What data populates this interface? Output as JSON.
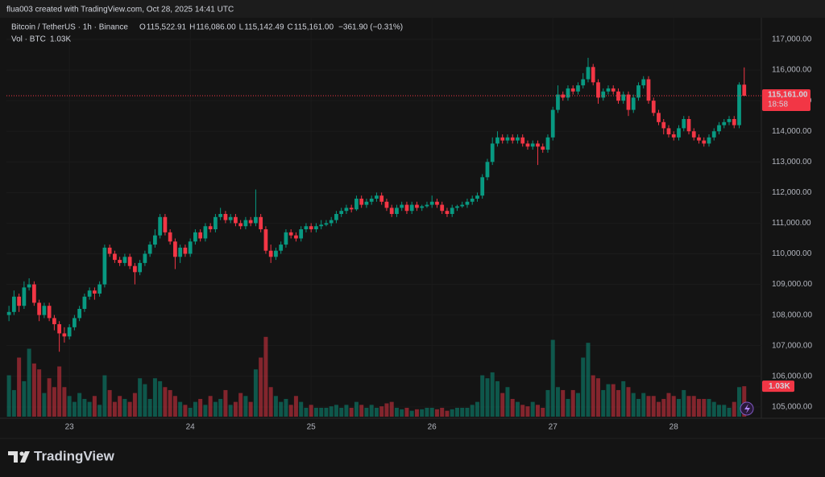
{
  "header": "flua003 created with TradingView.com, Oct 28, 2025 14:41 UTC",
  "footer": {
    "brand": "TradingView"
  },
  "chart_data": {
    "type": "candlestick",
    "symbol": "Bitcoin / TetherUS · 1h · Binance",
    "ohlc_legend": [
      {
        "key": "O",
        "value": "115,522.91"
      },
      {
        "key": "H",
        "value": "116,086.00"
      },
      {
        "key": "L",
        "value": "115,142.49"
      },
      {
        "key": "C",
        "value": "115,161.00"
      }
    ],
    "change": "−361.90 (−0.31%)",
    "volume_title": "Vol · BTC",
    "volume_legend": "1.03K",
    "up_color": "#089981",
    "down_color": "#f23645",
    "xlim": [
      -0.5,
      149.4
    ],
    "ylim": [
      104680,
      117710
    ],
    "volume_ylim": [
      0,
      13500
    ],
    "grid": true,
    "xticks": [
      {
        "value": 12,
        "label": "23"
      },
      {
        "value": 36,
        "label": "24"
      },
      {
        "value": 60,
        "label": "25"
      },
      {
        "value": 84,
        "label": "26"
      },
      {
        "value": 108,
        "label": "27"
      },
      {
        "value": 132,
        "label": "28"
      }
    ],
    "yticks": [
      {
        "value": 105000,
        "label": "105,000.00"
      },
      {
        "value": 106000,
        "label": "106,000.00"
      },
      {
        "value": 107000,
        "label": "107,000.00"
      },
      {
        "value": 108000,
        "label": "108,000.00"
      },
      {
        "value": 109000,
        "label": "109,000.00"
      },
      {
        "value": 110000,
        "label": "110,000.00"
      },
      {
        "value": 111000,
        "label": "111,000.00"
      },
      {
        "value": 112000,
        "label": "112,000.00"
      },
      {
        "value": 113000,
        "label": "113,000.00"
      },
      {
        "value": 114000,
        "label": "114,000.00"
      },
      {
        "value": 115000,
        "label": "115,000.00"
      },
      {
        "value": 116000,
        "label": "116,000.00"
      },
      {
        "value": 117000,
        "label": "117,000.00"
      }
    ],
    "last_price": {
      "value": 115161,
      "label": "115,161.00",
      "countdown": "18:58"
    },
    "volume_badge": {
      "value": 1030,
      "label": "1.03K"
    },
    "candles": [
      [
        108000,
        108300,
        107800,
        108100
      ],
      [
        108100,
        108800,
        108000,
        108600
      ],
      [
        108600,
        108700,
        108100,
        108300
      ],
      [
        108300,
        109100,
        108200,
        108900
      ],
      [
        108900,
        109200,
        108800,
        109000
      ],
      [
        109000,
        109100,
        108300,
        108400
      ],
      [
        108400,
        108500,
        107800,
        108000
      ],
      [
        108000,
        108400,
        107900,
        108300
      ],
      [
        108300,
        108400,
        107800,
        107900
      ],
      [
        107900,
        108000,
        107500,
        107700
      ],
      [
        107700,
        107800,
        106800,
        107400
      ],
      [
        107400,
        107600,
        107100,
        107300
      ],
      [
        107300,
        107700,
        107200,
        107600
      ],
      [
        107600,
        108000,
        107500,
        107900
      ],
      [
        107900,
        108300,
        107800,
        108200
      ],
      [
        108200,
        108700,
        108100,
        108600
      ],
      [
        108600,
        108900,
        108500,
        108800
      ],
      [
        108800,
        108900,
        108500,
        108700
      ],
      [
        108700,
        109100,
        108600,
        109000
      ],
      [
        109000,
        110300,
        108900,
        110200
      ],
      [
        110200,
        110300,
        109900,
        110000
      ],
      [
        110000,
        110100,
        109700,
        109800
      ],
      [
        109800,
        109900,
        109600,
        109700
      ],
      [
        109700,
        110000,
        109600,
        109900
      ],
      [
        109900,
        110000,
        109500,
        109600
      ],
      [
        109600,
        109700,
        109000,
        109400
      ],
      [
        109400,
        109800,
        109300,
        109700
      ],
      [
        109700,
        110100,
        109600,
        110000
      ],
      [
        110000,
        110400,
        109900,
        110300
      ],
      [
        110300,
        110800,
        110200,
        110600
      ],
      [
        110600,
        111300,
        110500,
        111200
      ],
      [
        111200,
        111300,
        110600,
        110700
      ],
      [
        110700,
        110800,
        110300,
        110400
      ],
      [
        110400,
        110500,
        109500,
        109900
      ],
      [
        109900,
        110300,
        109700,
        110200
      ],
      [
        110200,
        110300,
        109900,
        110000
      ],
      [
        110000,
        110500,
        109900,
        110400
      ],
      [
        110400,
        110800,
        110300,
        110700
      ],
      [
        110700,
        110800,
        110400,
        110500
      ],
      [
        110500,
        111000,
        110400,
        110900
      ],
      [
        110900,
        111000,
        110700,
        110800
      ],
      [
        110800,
        111300,
        110700,
        111200
      ],
      [
        111200,
        111500,
        111100,
        111300
      ],
      [
        111300,
        111400,
        111000,
        111100
      ],
      [
        111100,
        111300,
        111000,
        111200
      ],
      [
        111200,
        111300,
        110900,
        111000
      ],
      [
        111000,
        111100,
        110800,
        110900
      ],
      [
        110900,
        111200,
        110800,
        111100
      ],
      [
        111100,
        111200,
        110900,
        111000
      ],
      [
        111000,
        112100,
        110900,
        111200
      ],
      [
        111200,
        111300,
        110700,
        110800
      ],
      [
        110800,
        110900,
        110000,
        110100
      ],
      [
        110100,
        110300,
        109700,
        109900
      ],
      [
        109900,
        110200,
        109800,
        110100
      ],
      [
        110100,
        110400,
        110000,
        110300
      ],
      [
        110300,
        110800,
        110200,
        110700
      ],
      [
        110700,
        110800,
        110500,
        110600
      ],
      [
        110600,
        110700,
        110400,
        110500
      ],
      [
        110500,
        110900,
        110400,
        110800
      ],
      [
        110800,
        111000,
        110700,
        110900
      ],
      [
        110900,
        111000,
        110700,
        110800
      ],
      [
        110800,
        111000,
        110700,
        110900
      ],
      [
        110900,
        111100,
        110800,
        110950
      ],
      [
        110950,
        111100,
        110900,
        111000
      ],
      [
        111000,
        111200,
        110900,
        111100
      ],
      [
        111100,
        111400,
        111000,
        111300
      ],
      [
        111300,
        111500,
        111200,
        111400
      ],
      [
        111400,
        111600,
        111300,
        111500
      ],
      [
        111500,
        111600,
        111350,
        111450
      ],
      [
        111450,
        111900,
        111400,
        111800
      ],
      [
        111800,
        111900,
        111500,
        111600
      ],
      [
        111600,
        111800,
        111500,
        111700
      ],
      [
        111700,
        111900,
        111600,
        111800
      ],
      [
        111800,
        112000,
        111700,
        111900
      ],
      [
        111900,
        112000,
        111600,
        111700
      ],
      [
        111700,
        111800,
        111400,
        111500
      ],
      [
        111500,
        111600,
        111200,
        111300
      ],
      [
        111300,
        111600,
        111200,
        111500
      ],
      [
        111500,
        111700,
        111400,
        111600
      ],
      [
        111600,
        111700,
        111300,
        111400
      ],
      [
        111400,
        111700,
        111300,
        111600
      ],
      [
        111600,
        111700,
        111400,
        111500
      ],
      [
        111500,
        111600,
        111400,
        111550
      ],
      [
        111550,
        111700,
        111500,
        111600
      ],
      [
        111600,
        111900,
        111500,
        111700
      ],
      [
        111700,
        111800,
        111500,
        111600
      ],
      [
        111600,
        111700,
        111300,
        111400
      ],
      [
        111400,
        111500,
        111200,
        111300
      ],
      [
        111300,
        111600,
        111200,
        111500
      ],
      [
        111500,
        111600,
        111400,
        111550
      ],
      [
        111550,
        111700,
        111500,
        111600
      ],
      [
        111600,
        111800,
        111500,
        111700
      ],
      [
        111700,
        111900,
        111600,
        111800
      ],
      [
        111800,
        112000,
        111700,
        111900
      ],
      [
        111900,
        112600,
        111800,
        112500
      ],
      [
        112500,
        113100,
        112400,
        113000
      ],
      [
        113000,
        113800,
        112900,
        113600
      ],
      [
        113600,
        114000,
        113500,
        113800
      ],
      [
        113800,
        113900,
        113600,
        113700
      ],
      [
        113700,
        113900,
        113600,
        113800
      ],
      [
        113800,
        113900,
        113600,
        113700
      ],
      [
        113700,
        113900,
        113600,
        113800
      ],
      [
        113800,
        113900,
        113500,
        113600
      ],
      [
        113600,
        113700,
        113400,
        113500
      ],
      [
        113500,
        113700,
        113400,
        113600
      ],
      [
        113600,
        113700,
        112900,
        113500
      ],
      [
        113500,
        113600,
        113300,
        113400
      ],
      [
        113400,
        113900,
        113300,
        113800
      ],
      [
        113800,
        114800,
        113700,
        114700
      ],
      [
        114700,
        115500,
        114600,
        115200
      ],
      [
        115200,
        115300,
        115000,
        115100
      ],
      [
        115100,
        115500,
        115000,
        115400
      ],
      [
        115400,
        115500,
        115200,
        115300
      ],
      [
        115300,
        115600,
        115200,
        115500
      ],
      [
        115500,
        115900,
        115400,
        115700
      ],
      [
        115700,
        116400,
        115600,
        116100
      ],
      [
        116100,
        116200,
        115500,
        115600
      ],
      [
        115600,
        115700,
        114900,
        115100
      ],
      [
        115100,
        115400,
        115000,
        115300
      ],
      [
        115300,
        115500,
        115200,
        115400
      ],
      [
        115400,
        115500,
        115200,
        115300
      ],
      [
        115300,
        115400,
        114900,
        115000
      ],
      [
        115000,
        115300,
        114900,
        115200
      ],
      [
        115200,
        115300,
        114500,
        114700
      ],
      [
        114700,
        115200,
        114600,
        115100
      ],
      [
        115100,
        115600,
        115000,
        115500
      ],
      [
        115500,
        115800,
        115400,
        115700
      ],
      [
        115700,
        115800,
        114900,
        115000
      ],
      [
        115000,
        115100,
        114500,
        114600
      ],
      [
        114600,
        114700,
        114200,
        114300
      ],
      [
        114300,
        114400,
        113900,
        114100
      ],
      [
        114100,
        114200,
        113800,
        113900
      ],
      [
        113900,
        114000,
        113700,
        113800
      ],
      [
        113800,
        114200,
        113700,
        114100
      ],
      [
        114100,
        114500,
        114000,
        114400
      ],
      [
        114400,
        114500,
        113900,
        114000
      ],
      [
        114000,
        114100,
        113700,
        113800
      ],
      [
        113800,
        113900,
        113600,
        113700
      ],
      [
        113700,
        113800,
        113500,
        113600
      ],
      [
        113600,
        113900,
        113500,
        113800
      ],
      [
        113800,
        114100,
        113700,
        114000
      ],
      [
        114000,
        114300,
        113900,
        114200
      ],
      [
        114200,
        114400,
        114100,
        114300
      ],
      [
        114300,
        114500,
        114200,
        114400
      ],
      [
        114400,
        114500,
        114100,
        114200
      ],
      [
        114200,
        115600,
        114100,
        115522.91
      ],
      [
        115522.91,
        116086,
        115142.49,
        115161
      ]
    ],
    "volume": [
      1400,
      900,
      2000,
      1200,
      2300,
      1800,
      1600,
      800,
      1300,
      1000,
      1700,
      1000,
      700,
      500,
      800,
      600,
      500,
      700,
      400,
      1400,
      900,
      500,
      700,
      600,
      500,
      800,
      1300,
      1100,
      600,
      1300,
      1200,
      1000,
      900,
      700,
      500,
      400,
      300,
      500,
      600,
      400,
      700,
      500,
      600,
      900,
      400,
      500,
      800,
      700,
      500,
      1600,
      2000,
      2700,
      1000,
      700,
      500,
      600,
      400,
      700,
      500,
      300,
      400,
      300,
      300,
      300,
      350,
      400,
      300,
      400,
      300,
      500,
      400,
      300,
      400,
      300,
      350,
      450,
      500,
      300,
      250,
      300,
      200,
      250,
      250,
      300,
      300,
      250,
      300,
      200,
      250,
      300,
      300,
      300,
      400,
      500,
      1400,
      1300,
      1500,
      1200,
      800,
      1000,
      600,
      500,
      400,
      350,
      500,
      400,
      300,
      900,
      2600,
      1000,
      900,
      600,
      900,
      800,
      2000,
      2500,
      1400,
      1300,
      900,
      1100,
      1100,
      900,
      1200,
      1000,
      800,
      600,
      800,
      700,
      700,
      500,
      600,
      800,
      700,
      600,
      900,
      700,
      700,
      600,
      600,
      600,
      500,
      400,
      400,
      300,
      500,
      1000,
      1030
    ]
  }
}
